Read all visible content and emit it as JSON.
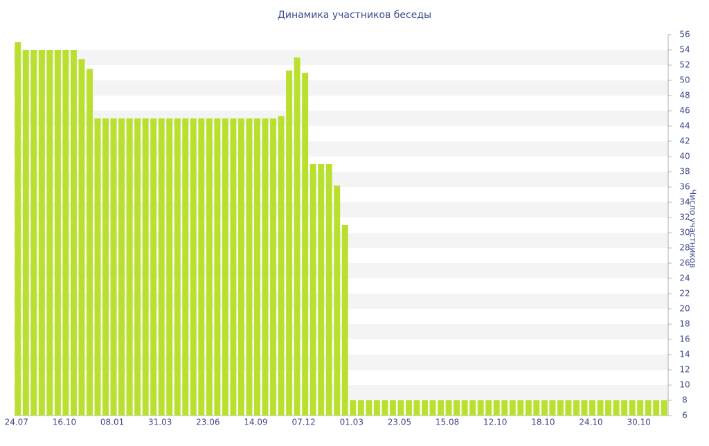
{
  "chart_data": {
    "type": "bar",
    "title": "Динамика участников беседы",
    "y_label": "Число участников",
    "categories": [
      "24.07",
      null,
      null,
      null,
      null,
      null,
      "16.10",
      null,
      null,
      null,
      null,
      null,
      "08.01",
      null,
      null,
      null,
      null,
      null,
      "31.03",
      null,
      null,
      null,
      null,
      null,
      "23.06",
      null,
      null,
      null,
      null,
      null,
      "14.09",
      null,
      null,
      null,
      null,
      null,
      "07.12",
      null,
      null,
      null,
      null,
      null,
      "01.03",
      null,
      null,
      null,
      null,
      null,
      "23.05",
      null,
      null,
      null,
      null,
      null,
      "15.08",
      null,
      null,
      null,
      null,
      null,
      "12.10",
      null,
      null,
      null,
      null,
      null,
      "18.10",
      null,
      null,
      null,
      null,
      null,
      "24.10",
      null,
      null,
      null,
      null,
      null,
      "30.10",
      null,
      null,
      null
    ],
    "values": [
      55,
      54,
      54,
      54,
      54,
      54,
      54,
      54,
      52.8,
      51.5,
      45,
      45,
      45,
      45,
      45,
      45,
      45,
      45,
      45,
      45,
      45,
      45,
      45,
      45,
      45,
      45,
      45,
      45,
      45,
      45,
      45,
      45,
      45,
      45.3,
      51.3,
      53,
      51,
      39,
      39,
      39,
      36.2,
      31,
      8,
      8,
      8,
      8,
      8,
      8,
      8,
      8,
      8,
      8,
      8,
      8,
      8,
      8,
      8,
      8,
      8,
      8,
      8,
      8,
      8,
      8,
      8,
      8,
      8,
      8,
      8,
      8,
      8,
      8,
      8,
      8,
      8,
      8,
      8,
      8,
      8,
      8,
      8,
      8
    ],
    "color": "#b9e02e",
    "ylim": [
      6,
      56
    ],
    "yticks": [
      6,
      8,
      10,
      12,
      14,
      16,
      18,
      20,
      22,
      24,
      26,
      28,
      30,
      32,
      34,
      36,
      38,
      40,
      42,
      44,
      46,
      48,
      50,
      52,
      54,
      56
    ],
    "grid": "stripes",
    "y_axis_side": "right"
  }
}
